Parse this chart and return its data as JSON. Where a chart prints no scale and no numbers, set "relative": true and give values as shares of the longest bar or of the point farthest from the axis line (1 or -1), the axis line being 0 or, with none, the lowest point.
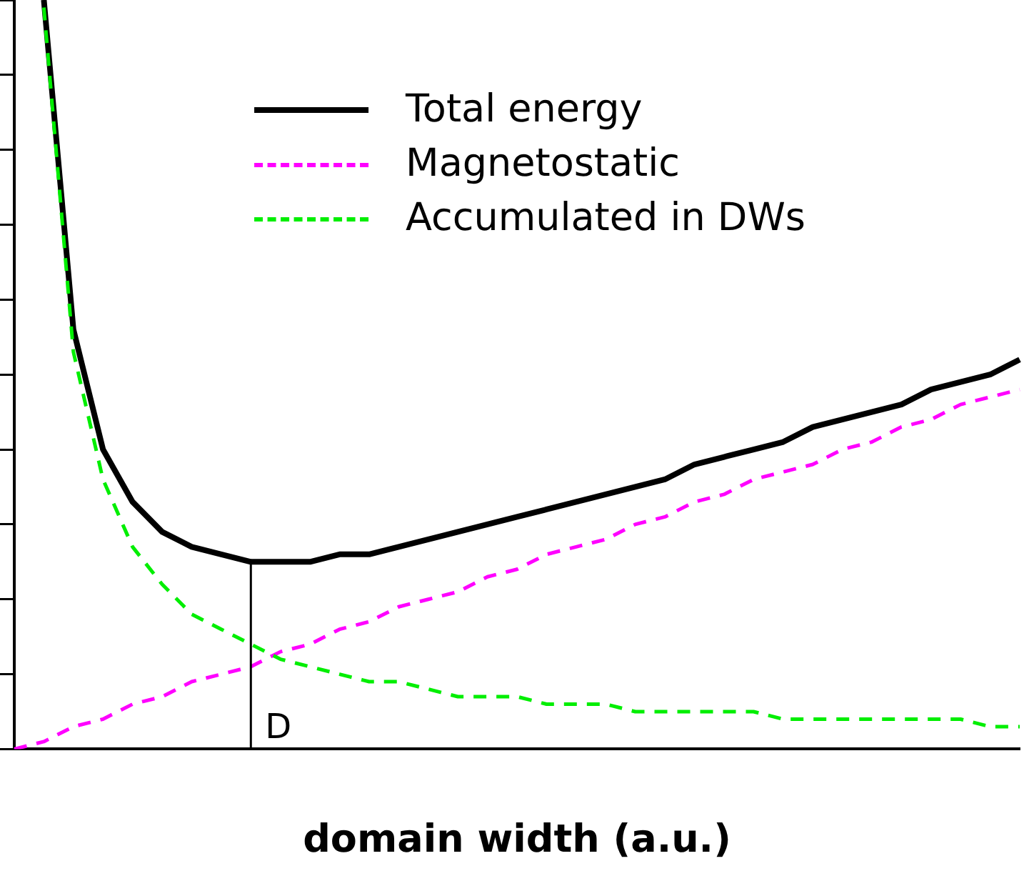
{
  "chart_data": {
    "type": "line",
    "relative": true,
    "xlabel": "domain width (a.u.)",
    "categories": [
      null,
      null,
      null,
      null,
      null,
      null,
      null,
      null,
      null,
      null,
      null,
      null,
      null,
      null,
      null,
      null,
      null,
      null,
      null,
      null,
      null,
      null,
      null,
      null,
      null,
      null,
      null,
      null,
      null,
      null,
      null,
      null,
      null,
      null,
      null
    ],
    "series": [
      {
        "name": "Total energy",
        "color": "#000000",
        "line_style": "solid",
        "values": [
          null,
          1.0,
          0.56,
          0.4,
          0.33,
          0.29,
          0.27,
          0.26,
          0.25,
          0.25,
          0.25,
          0.26,
          0.26,
          0.27,
          0.28,
          0.29,
          0.3,
          0.31,
          0.32,
          0.33,
          0.34,
          0.35,
          0.36,
          0.38,
          0.39,
          0.4,
          0.41,
          0.43,
          0.44,
          0.45,
          0.46,
          0.48,
          0.49,
          0.5,
          0.52
        ]
      },
      {
        "name": "Magnetostatic",
        "color": "#ff00ff",
        "line_style": "dashed",
        "values": [
          0,
          0.01,
          0.03,
          0.04,
          0.06,
          0.07,
          0.09,
          0.1,
          0.11,
          0.13,
          0.14,
          0.16,
          0.17,
          0.19,
          0.2,
          0.21,
          0.23,
          0.24,
          0.26,
          0.27,
          0.28,
          0.3,
          0.31,
          0.33,
          0.34,
          0.36,
          0.37,
          0.38,
          0.4,
          0.41,
          0.43,
          0.44,
          0.46,
          0.47,
          0.48
        ]
      },
      {
        "name": "Accumulated in DWs",
        "color": "#00ee00",
        "line_style": "dashed",
        "values": [
          null,
          0.99,
          0.53,
          0.36,
          0.27,
          0.22,
          0.18,
          0.16,
          0.14,
          0.12,
          0.11,
          0.1,
          0.09,
          0.09,
          0.08,
          0.07,
          0.07,
          0.07,
          0.06,
          0.06,
          0.06,
          0.05,
          0.05,
          0.05,
          0.05,
          0.05,
          0.04,
          0.04,
          0.04,
          0.04,
          0.04,
          0.04,
          0.04,
          0.03,
          0.03
        ]
      }
    ],
    "ref_lines": [
      {
        "axis": "x",
        "label": "D",
        "color": "#000000"
      }
    ],
    "legend": "top",
    "marker": "none"
  }
}
